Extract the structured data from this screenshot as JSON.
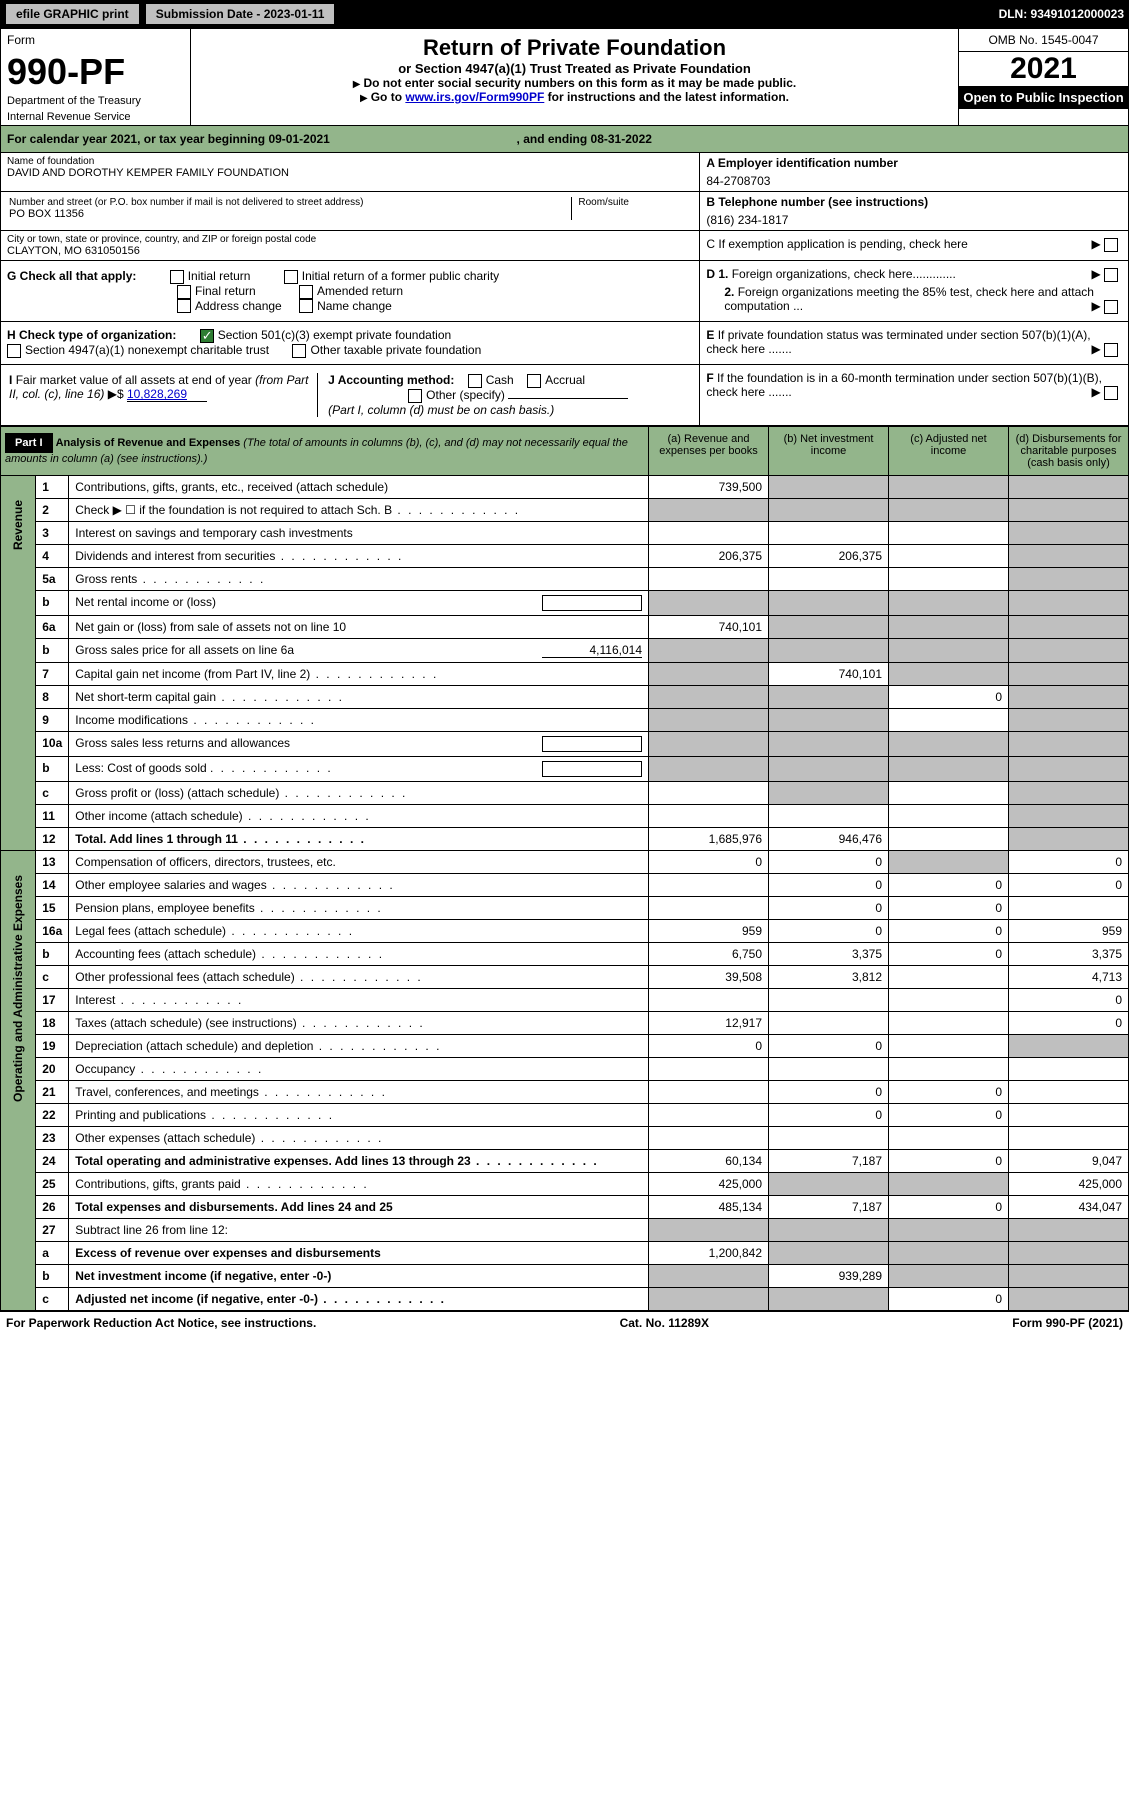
{
  "topbar": {
    "efile_btn": "efile GRAPHIC print",
    "submission_label": "Submission Date - 2023-01-11",
    "dln": "DLN: 93491012000023"
  },
  "header": {
    "form_word": "Form",
    "form_number": "990-PF",
    "department": "Department of the Treasury",
    "irs": "Internal Revenue Service",
    "title": "Return of Private Foundation",
    "subtitle": "or Section 4947(a)(1) Trust Treated as Private Foundation",
    "note1": "Do not enter social security numbers on this form as it may be made public.",
    "note2_prefix": "Go to ",
    "note2_link": "www.irs.gov/Form990PF",
    "note2_suffix": " for instructions and the latest information.",
    "omb": "OMB No. 1545-0047",
    "year": "2021",
    "open_public": "Open to Public Inspection"
  },
  "cal": {
    "text_a": "For calendar year 2021, or tax year beginning ",
    "begin": "09-01-2021",
    "text_b": ", and ending ",
    "end": "08-31-2022"
  },
  "id": {
    "name_label": "Name of foundation",
    "name_value": "DAVID AND DOROTHY KEMPER FAMILY FOUNDATION",
    "addr_label": "Number and street (or P.O. box number if mail is not delivered to street address)",
    "addr_value": "PO BOX 11356",
    "room_label": "Room/suite",
    "city_label": "City or town, state or province, country, and ZIP or foreign postal code",
    "city_value": "CLAYTON, MO  631050156",
    "ein_label": "A Employer identification number",
    "ein_value": "84-2708703",
    "phone_label": "B Telephone number (see instructions)",
    "phone_value": "(816) 234-1817",
    "c_label": "C If exemption application is pending, check here",
    "d1_label": "D 1. Foreign organizations, check here.............",
    "d2_label": "2. Foreign organizations meeting the 85% test, check here and attach computation ...",
    "e_label": "E If private foundation status was terminated under section 507(b)(1)(A), check here .......",
    "f_label": "F If the foundation is in a 60-month termination under section 507(b)(1)(B), check here .......",
    "g_label": "G Check all that apply:",
    "g_initial": "Initial return",
    "g_initial_former": "Initial return of a former public charity",
    "g_final": "Final return",
    "g_amended": "Amended return",
    "g_address": "Address change",
    "g_name": "Name change",
    "h_label": "H Check type of organization:",
    "h_501c3": "Section 501(c)(3) exempt private foundation",
    "h_4947": "Section 4947(a)(1) nonexempt charitable trust",
    "h_other": "Other taxable private foundation",
    "i_label": "I Fair market value of all assets at end of year (from Part II, col. (c), line 16)",
    "i_value": "10,828,269",
    "j_label": "J Accounting method:",
    "j_cash": "Cash",
    "j_accrual": "Accrual",
    "j_other": "Other (specify)",
    "j_note": "(Part I, column (d) must be on cash basis.)"
  },
  "part1": {
    "badge": "Part I",
    "title": "Analysis of Revenue and Expenses",
    "title_note": "(The total of amounts in columns (b), (c), and (d) may not necessarily equal the amounts in column (a) (see instructions).)",
    "col_a": "(a)   Revenue and expenses per books",
    "col_b": "(b)   Net investment income",
    "col_c": "(c)   Adjusted net income",
    "col_d": "(d)   Disbursements for charitable purposes (cash basis only)",
    "revenue_label": "Revenue",
    "expenses_label": "Operating and Administrative Expenses"
  },
  "rows": [
    {
      "no": "1",
      "desc": "Contributions, gifts, grants, etc., received (attach schedule)",
      "a": "739,500",
      "b": "",
      "c": "",
      "d": "",
      "shade_b": true,
      "shade_c": true,
      "shade_d": true
    },
    {
      "no": "2",
      "desc": "Check ▶ ☐ if the foundation is not required to attach Sch. B",
      "a": "",
      "b": "",
      "c": "",
      "d": "",
      "shade_a": true,
      "shade_b": true,
      "shade_c": true,
      "shade_d": true,
      "dots": true
    },
    {
      "no": "3",
      "desc": "Interest on savings and temporary cash investments",
      "a": " ",
      "b": " ",
      "c": " ",
      "d": "",
      "shade_d": true
    },
    {
      "no": "4",
      "desc": "Dividends and interest from securities",
      "a": "206,375",
      "b": "206,375",
      "c": " ",
      "d": "",
      "dots": true,
      "shade_d": true
    },
    {
      "no": "5a",
      "desc": "Gross rents",
      "a": "",
      "b": "",
      "c": "",
      "d": "",
      "dots": true,
      "shade_d": true
    },
    {
      "no": "b",
      "desc": "Net rental income or (loss)",
      "a": "",
      "b": "",
      "c": "",
      "d": "",
      "shade_a": true,
      "shade_b": true,
      "shade_c": true,
      "shade_d": true,
      "inline_blank": true
    },
    {
      "no": "6a",
      "desc": "Net gain or (loss) from sale of assets not on line 10",
      "a": "740,101",
      "b": "",
      "c": "",
      "d": "",
      "shade_b": true,
      "shade_c": true,
      "shade_d": true
    },
    {
      "no": "b",
      "desc": "Gross sales price for all assets on line 6a",
      "a": "",
      "b": "",
      "c": "",
      "d": "",
      "inline_val": "4,116,014",
      "shade_a": true,
      "shade_b": true,
      "shade_c": true,
      "shade_d": true
    },
    {
      "no": "7",
      "desc": "Capital gain net income (from Part IV, line 2)",
      "a": "",
      "b": "740,101",
      "c": "",
      "d": "",
      "dots": true,
      "shade_a": true,
      "shade_c": true,
      "shade_d": true
    },
    {
      "no": "8",
      "desc": "Net short-term capital gain",
      "a": "",
      "b": "",
      "c": "0",
      "d": "",
      "dots": true,
      "shade_a": true,
      "shade_b": true,
      "shade_d": true
    },
    {
      "no": "9",
      "desc": "Income modifications",
      "a": "",
      "b": "",
      "c": "",
      "d": "",
      "dots": true,
      "shade_a": true,
      "shade_b": true,
      "shade_d": true
    },
    {
      "no": "10a",
      "desc": "Gross sales less returns and allowances",
      "a": "",
      "b": "",
      "c": "",
      "d": "",
      "inline_blank": true,
      "shade_a": true,
      "shade_b": true,
      "shade_c": true,
      "shade_d": true
    },
    {
      "no": "b",
      "desc": "Less: Cost of goods sold",
      "a": "",
      "b": "",
      "c": "",
      "d": "",
      "dots": true,
      "inline_blank": true,
      "shade_a": true,
      "shade_b": true,
      "shade_c": true,
      "shade_d": true
    },
    {
      "no": "c",
      "desc": "Gross profit or (loss) (attach schedule)",
      "a": "",
      "b": "",
      "c": "",
      "d": "",
      "dots": true,
      "shade_b": true,
      "shade_d": true
    },
    {
      "no": "11",
      "desc": "Other income (attach schedule)",
      "a": "",
      "b": "",
      "c": "",
      "d": "",
      "dots": true,
      "shade_d": true
    },
    {
      "no": "12",
      "desc": "Total. Add lines 1 through 11",
      "a": "1,685,976",
      "b": "946,476",
      "c": "",
      "d": "",
      "dots": true,
      "bold": true,
      "shade_d": true
    }
  ],
  "exp_rows": [
    {
      "no": "13",
      "desc": "Compensation of officers, directors, trustees, etc.",
      "a": "0",
      "b": "0",
      "c": "",
      "d": "0",
      "shade_c": true
    },
    {
      "no": "14",
      "desc": "Other employee salaries and wages",
      "a": "",
      "b": "0",
      "c": "0",
      "d": "0",
      "dots": true
    },
    {
      "no": "15",
      "desc": "Pension plans, employee benefits",
      "a": "",
      "b": "0",
      "c": "0",
      "d": "",
      "dots": true
    },
    {
      "no": "16a",
      "desc": "Legal fees (attach schedule)",
      "a": "959",
      "b": "0",
      "c": "0",
      "d": "959",
      "dots": true
    },
    {
      "no": "b",
      "desc": "Accounting fees (attach schedule)",
      "a": "6,750",
      "b": "3,375",
      "c": "0",
      "d": "3,375",
      "dots": true
    },
    {
      "no": "c",
      "desc": "Other professional fees (attach schedule)",
      "a": "39,508",
      "b": "3,812",
      "c": "",
      "d": "4,713",
      "dots": true
    },
    {
      "no": "17",
      "desc": "Interest",
      "a": "",
      "b": "",
      "c": "",
      "d": "0",
      "dots": true
    },
    {
      "no": "18",
      "desc": "Taxes (attach schedule) (see instructions)",
      "a": "12,917",
      "b": "",
      "c": "",
      "d": "0",
      "dots": true
    },
    {
      "no": "19",
      "desc": "Depreciation (attach schedule) and depletion",
      "a": "0",
      "b": "0",
      "c": "",
      "d": "",
      "dots": true,
      "shade_d": true
    },
    {
      "no": "20",
      "desc": "Occupancy",
      "a": "",
      "b": " ",
      "c": "",
      "d": "",
      "dots": true
    },
    {
      "no": "21",
      "desc": "Travel, conferences, and meetings",
      "a": "",
      "b": "0",
      "c": "0",
      "d": "",
      "dots": true
    },
    {
      "no": "22",
      "desc": "Printing and publications",
      "a": "",
      "b": "0",
      "c": "0",
      "d": "",
      "dots": true
    },
    {
      "no": "23",
      "desc": "Other expenses (attach schedule)",
      "a": "",
      "b": "",
      "c": "",
      "d": "",
      "dots": true
    },
    {
      "no": "24",
      "desc": "Total operating and administrative expenses. Add lines 13 through 23",
      "a": "60,134",
      "b": "7,187",
      "c": "0",
      "d": "9,047",
      "dots": true,
      "bold": true
    },
    {
      "no": "25",
      "desc": "Contributions, gifts, grants paid",
      "a": "425,000",
      "b": "",
      "c": "",
      "d": "425,000",
      "dots": true,
      "shade_b": true,
      "shade_c": true
    },
    {
      "no": "26",
      "desc": "Total expenses and disbursements. Add lines 24 and 25",
      "a": "485,134",
      "b": "7,187",
      "c": "0",
      "d": "434,047",
      "bold": true
    },
    {
      "no": "27",
      "desc": "Subtract line 26 from line 12:",
      "a": "",
      "b": "",
      "c": "",
      "d": "",
      "shade_a": true,
      "shade_b": true,
      "shade_c": true,
      "shade_d": true
    },
    {
      "no": "a",
      "desc": "Excess of revenue over expenses and disbursements",
      "a": "1,200,842",
      "b": "",
      "c": "",
      "d": "",
      "bold": true,
      "shade_b": true,
      "shade_c": true,
      "shade_d": true
    },
    {
      "no": "b",
      "desc": "Net investment income (if negative, enter -0-)",
      "a": "",
      "b": "939,289",
      "c": "",
      "d": "",
      "bold": true,
      "shade_a": true,
      "shade_c": true,
      "shade_d": true
    },
    {
      "no": "c",
      "desc": "Adjusted net income (if negative, enter -0-)",
      "a": "",
      "b": "",
      "c": "0",
      "d": "",
      "bold": true,
      "dots": true,
      "shade_a": true,
      "shade_b": true,
      "shade_d": true
    }
  ],
  "footer": {
    "left": "For Paperwork Reduction Act Notice, see instructions.",
    "mid": "Cat. No. 11289X",
    "right": "Form 990-PF (2021)"
  }
}
